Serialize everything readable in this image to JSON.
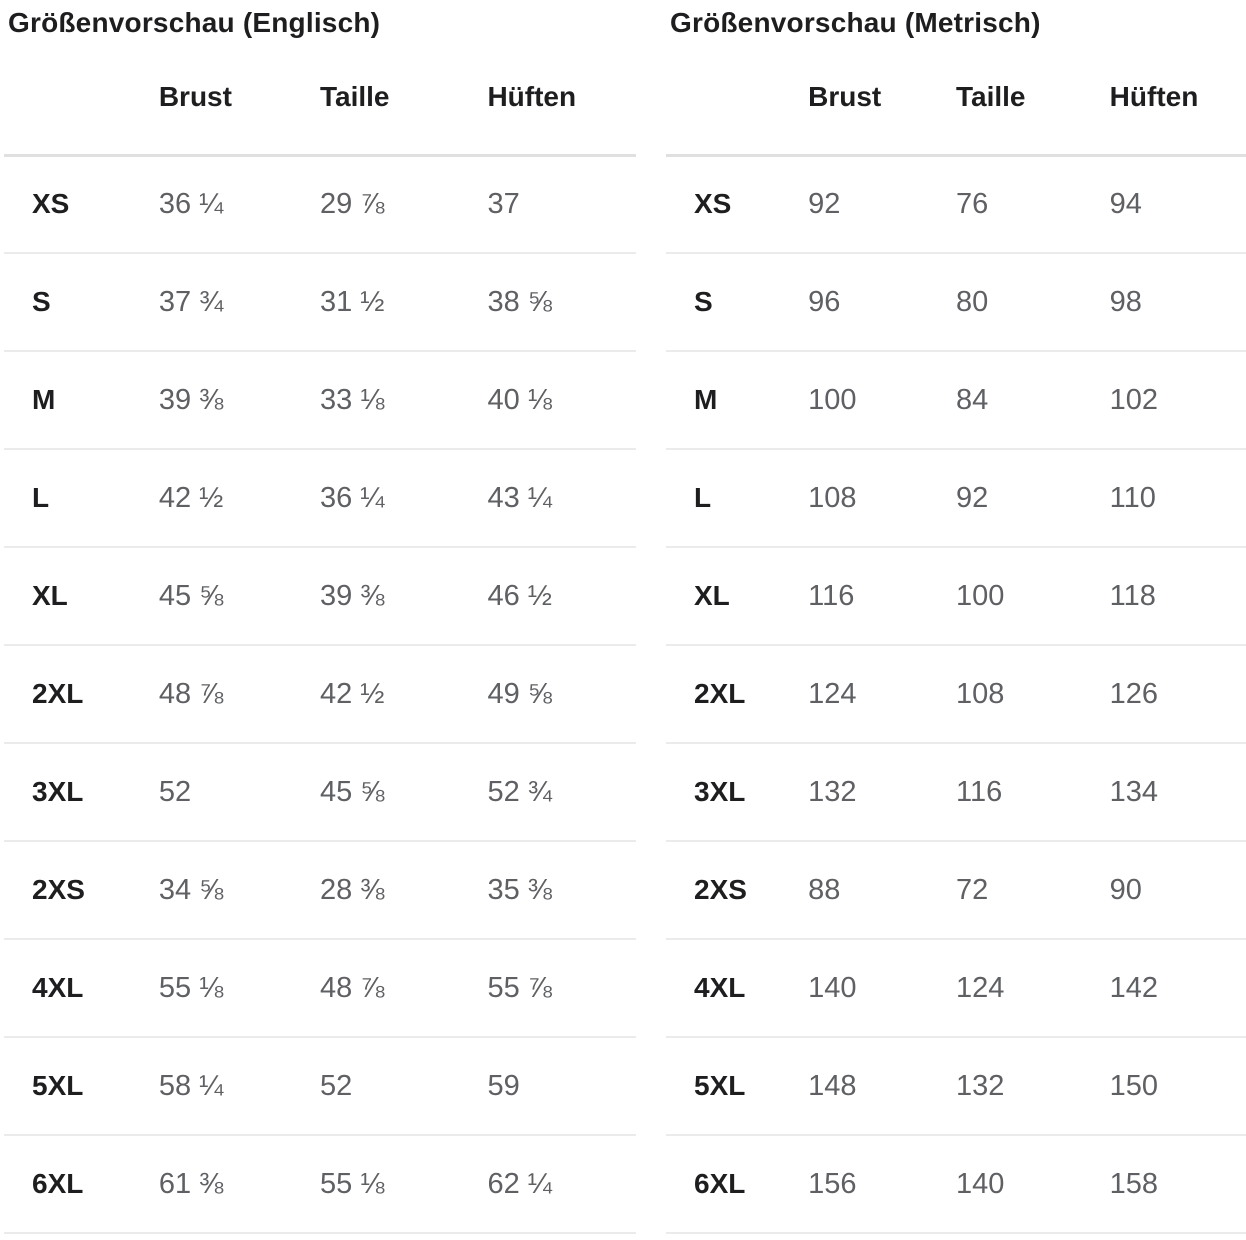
{
  "tables": [
    {
      "title": "Größenvorschau (Englisch)",
      "columns": [
        "Brust",
        "Taille",
        "Hüften"
      ],
      "rows": [
        {
          "size": "XS",
          "values": [
            "36 ¼",
            "29 ⅞",
            "37"
          ]
        },
        {
          "size": "S",
          "values": [
            "37 ¾",
            "31 ½",
            "38 ⅝"
          ]
        },
        {
          "size": "M",
          "values": [
            "39 ⅜",
            "33 ⅛",
            "40 ⅛"
          ]
        },
        {
          "size": "L",
          "values": [
            "42 ½",
            "36 ¼",
            "43 ¼"
          ]
        },
        {
          "size": "XL",
          "values": [
            "45 ⅝",
            "39 ⅜",
            "46 ½"
          ]
        },
        {
          "size": "2XL",
          "values": [
            "48 ⅞",
            "42 ½",
            "49 ⅝"
          ]
        },
        {
          "size": "3XL",
          "values": [
            "52",
            "45 ⅝",
            "52 ¾"
          ]
        },
        {
          "size": "2XS",
          "values": [
            "34 ⅝",
            "28 ⅜",
            "35 ⅜"
          ]
        },
        {
          "size": "4XL",
          "values": [
            "55 ⅛",
            "48 ⅞",
            "55 ⅞"
          ]
        },
        {
          "size": "5XL",
          "values": [
            "58 ¼",
            "52",
            "59"
          ]
        },
        {
          "size": "6XL",
          "values": [
            "61 ⅜",
            "55 ⅛",
            "62 ¼"
          ]
        }
      ]
    },
    {
      "title": "Größenvorschau (Metrisch)",
      "columns": [
        "Brust",
        "Taille",
        "Hüften"
      ],
      "rows": [
        {
          "size": "XS",
          "values": [
            "92",
            "76",
            "94"
          ]
        },
        {
          "size": "S",
          "values": [
            "96",
            "80",
            "98"
          ]
        },
        {
          "size": "M",
          "values": [
            "100",
            "84",
            "102"
          ]
        },
        {
          "size": "L",
          "values": [
            "108",
            "92",
            "110"
          ]
        },
        {
          "size": "XL",
          "values": [
            "116",
            "100",
            "118"
          ]
        },
        {
          "size": "2XL",
          "values": [
            "124",
            "108",
            "126"
          ]
        },
        {
          "size": "3XL",
          "values": [
            "132",
            "116",
            "134"
          ]
        },
        {
          "size": "2XS",
          "values": [
            "88",
            "72",
            "90"
          ]
        },
        {
          "size": "4XL",
          "values": [
            "140",
            "124",
            "142"
          ]
        },
        {
          "size": "5XL",
          "values": [
            "148",
            "132",
            "150"
          ]
        },
        {
          "size": "6XL",
          "values": [
            "156",
            "140",
            "158"
          ]
        }
      ]
    }
  ],
  "colors": {
    "heading": "#1e1e20",
    "value": "#5e6063",
    "row_divider": "#ebebeb",
    "header_divider": "#e0e0e0",
    "background": "#ffffff"
  }
}
